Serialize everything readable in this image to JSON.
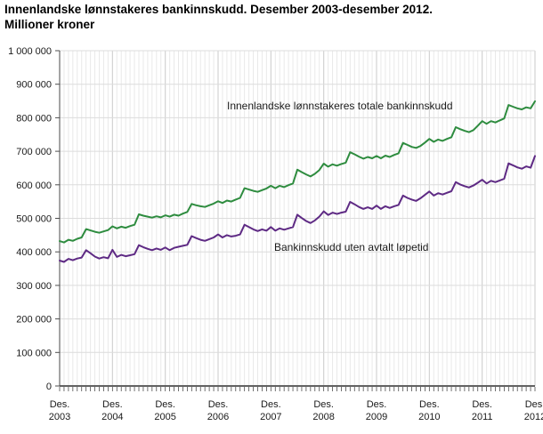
{
  "title": {
    "line1": "Innenlandske lønnstakeres bankinnskudd. Desember 2003-desember 2012.",
    "line2": "Millioner kroner"
  },
  "chart_data": {
    "type": "line",
    "title": "Innenlandske lønnstakeres bankinnskudd. Desember 2003-desember 2012. Millioner kroner",
    "xlabel": "",
    "ylabel": "",
    "ylim": [
      0,
      1000000
    ],
    "grid": true,
    "x_unit": "month",
    "x_range": [
      "Des. 2003",
      "Des. 2012"
    ],
    "months": 109,
    "x_tick_years": [
      "2003",
      "2004",
      "2005",
      "2006",
      "2007",
      "2008",
      "2009",
      "2010",
      "2011",
      "2012"
    ],
    "x_tick_prefix": "Des.",
    "y_ticks": [
      0,
      100000,
      200000,
      300000,
      400000,
      500000,
      600000,
      700000,
      800000,
      900000,
      1000000
    ],
    "y_tick_labels": [
      "0",
      "100 000",
      "200 000",
      "300 000",
      "400 000",
      "500 000",
      "600 000",
      "700 000",
      "800 000",
      "900 000",
      "1 000 000"
    ],
    "series": [
      {
        "name": "Innenlandske lønnstakeres totale bankinnskudd",
        "color": "#2e8c3f",
        "values": [
          432000,
          428000,
          436000,
          433000,
          439000,
          443000,
          468000,
          464000,
          460000,
          457000,
          461000,
          465000,
          476000,
          470000,
          475000,
          472000,
          477000,
          481000,
          512000,
          508000,
          505000,
          502000,
          506000,
          503000,
          509000,
          505000,
          511000,
          508000,
          514000,
          519000,
          543000,
          539000,
          536000,
          534000,
          539000,
          544000,
          551000,
          546000,
          553000,
          550000,
          556000,
          561000,
          590000,
          586000,
          582000,
          579000,
          584000,
          589000,
          597000,
          590000,
          597000,
          593000,
          599000,
          604000,
          645000,
          638000,
          631000,
          625000,
          633000,
          644000,
          663000,
          654000,
          661000,
          657000,
          662000,
          666000,
          697000,
          691000,
          684000,
          678000,
          683000,
          679000,
          686000,
          679000,
          687000,
          683000,
          689000,
          694000,
          725000,
          719000,
          713000,
          710000,
          716000,
          726000,
          737000,
          728000,
          735000,
          731000,
          737000,
          742000,
          772000,
          766000,
          761000,
          757000,
          763000,
          776000,
          790000,
          782000,
          790000,
          786000,
          792000,
          798000,
          838000,
          833000,
          828000,
          825000,
          831000,
          828000,
          849000
        ]
      },
      {
        "name": "Bankinnskudd uten avtalt løpetid",
        "color": "#5e2a84",
        "values": [
          374000,
          370000,
          379000,
          375000,
          380000,
          383000,
          405000,
          396000,
          386000,
          380000,
          384000,
          381000,
          406000,
          385000,
          391000,
          387000,
          390000,
          393000,
          420000,
          414000,
          409000,
          405000,
          410000,
          406000,
          413000,
          405000,
          412000,
          415000,
          418000,
          421000,
          447000,
          441000,
          436000,
          433000,
          438000,
          443000,
          452000,
          443000,
          450000,
          446000,
          448000,
          452000,
          481000,
          474000,
          467000,
          462000,
          467000,
          463000,
          474000,
          463000,
          470000,
          466000,
          470000,
          474000,
          511000,
          501000,
          492000,
          486000,
          494000,
          505000,
          521000,
          510000,
          517000,
          513000,
          517000,
          520000,
          549000,
          542000,
          534000,
          528000,
          533000,
          528000,
          538000,
          528000,
          536000,
          531000,
          536000,
          540000,
          568000,
          561000,
          556000,
          552000,
          560000,
          570000,
          580000,
          568000,
          575000,
          571000,
          576000,
          581000,
          608000,
          601000,
          596000,
          592000,
          598000,
          606000,
          615000,
          604000,
          612000,
          608000,
          613000,
          618000,
          664000,
          658000,
          652000,
          648000,
          655000,
          651000,
          686000
        ]
      }
    ],
    "colors": {
      "grid_minor": "#e9e9e9",
      "grid_year": "#cfcfcf",
      "grid_horizontal": "#dcdcdc",
      "axis": "#4d4d4d",
      "tick_text": "#1a1a1a"
    }
  },
  "annotations": {
    "total_label": "Innenlandske lønnstakeres totale bankinnskudd",
    "no_maturity_label": "Bankinnskudd uten avtalt løpetid"
  }
}
